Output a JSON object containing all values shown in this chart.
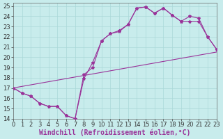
{
  "xlabel": "Windchill (Refroidissement éolien,°C)",
  "background_color": "#c8ecec",
  "line_color": "#993399",
  "grid_color": "#aad8d8",
  "xlim": [
    0,
    23
  ],
  "ylim": [
    14,
    25.3
  ],
  "xticks": [
    0,
    1,
    2,
    3,
    4,
    5,
    6,
    7,
    8,
    9,
    10,
    11,
    12,
    13,
    14,
    15,
    16,
    17,
    18,
    19,
    20,
    21,
    22,
    23
  ],
  "yticks": [
    14,
    15,
    16,
    17,
    18,
    19,
    20,
    21,
    22,
    23,
    24,
    25
  ],
  "curve1_x": [
    0,
    1,
    2,
    3,
    4,
    5,
    6,
    7,
    8,
    9,
    10,
    11,
    12,
    13,
    14,
    15,
    16,
    17,
    18,
    19,
    20,
    21,
    22,
    23
  ],
  "curve1_y": [
    17.0,
    16.5,
    16.2,
    15.5,
    15.2,
    15.2,
    14.3,
    14.0,
    17.9,
    19.5,
    21.6,
    22.3,
    22.6,
    23.2,
    24.8,
    24.9,
    24.3,
    24.8,
    24.1,
    23.5,
    24.0,
    23.8,
    22.0,
    20.8
  ],
  "curve2_x": [
    0,
    1,
    2,
    3,
    4,
    5,
    6,
    7,
    8,
    9,
    10,
    11,
    12,
    13,
    14,
    15,
    16,
    17,
    18,
    19,
    20,
    21,
    22,
    23
  ],
  "curve2_y": [
    17.0,
    16.5,
    16.2,
    15.5,
    15.2,
    15.2,
    14.3,
    14.0,
    18.3,
    19.0,
    21.6,
    22.3,
    22.5,
    23.2,
    24.8,
    24.9,
    24.3,
    24.8,
    24.1,
    23.5,
    23.5,
    23.5,
    22.0,
    20.8
  ],
  "refline_x": [
    0,
    23
  ],
  "refline_y": [
    17.0,
    20.5
  ],
  "xlabel_fontsize": 7,
  "tick_fontsize": 6,
  "marker_size": 3.0,
  "linewidth": 0.8
}
